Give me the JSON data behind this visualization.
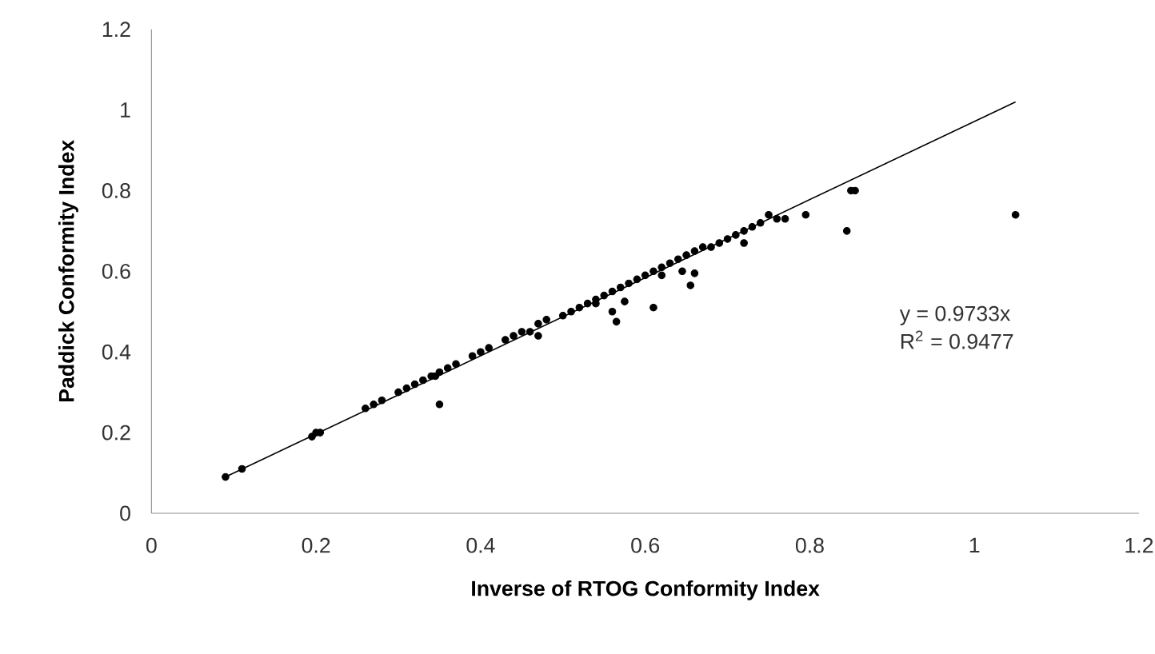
{
  "chart_data": {
    "type": "scatter",
    "xlabel": "Inverse of RTOG Conformity Index",
    "ylabel": "Paddick Conformity Index",
    "xlim": [
      0,
      1.2
    ],
    "ylim": [
      0,
      1.2
    ],
    "xticks": [
      0,
      0.2,
      0.4,
      0.6,
      0.8,
      1,
      1.2
    ],
    "yticks": [
      0,
      0.2,
      0.4,
      0.6,
      0.8,
      1,
      1.2
    ],
    "grid": false,
    "annotations": [
      "y = 0.9733x",
      "R$^{2}$ = 0.9477"
    ],
    "series": [
      {
        "marker": "circle",
        "color": "#000000",
        "x": [
          0.09,
          0.11,
          0.195,
          0.2,
          0.205,
          0.26,
          0.27,
          0.28,
          0.3,
          0.31,
          0.32,
          0.33,
          0.34,
          0.345,
          0.35,
          0.36,
          0.37,
          0.39,
          0.4,
          0.41,
          0.43,
          0.44,
          0.45,
          0.46,
          0.47,
          0.48,
          0.5,
          0.51,
          0.52,
          0.53,
          0.54,
          0.55,
          0.56,
          0.57,
          0.58,
          0.59,
          0.6,
          0.61,
          0.62,
          0.63,
          0.64,
          0.65,
          0.66,
          0.67,
          0.68,
          0.69,
          0.7,
          0.71,
          0.72,
          0.73,
          0.74,
          0.75,
          0.76,
          0.77,
          0.795,
          0.85,
          0.855,
          0.845,
          1.05,
          0.35,
          0.61,
          0.56,
          0.565,
          0.575,
          0.655,
          0.66,
          0.645,
          0.47,
          0.54,
          0.62,
          0.72
        ],
        "values": [
          0.09,
          0.11,
          0.19,
          0.2,
          0.2,
          0.26,
          0.27,
          0.28,
          0.3,
          0.31,
          0.32,
          0.33,
          0.34,
          0.34,
          0.35,
          0.36,
          0.37,
          0.39,
          0.4,
          0.41,
          0.43,
          0.44,
          0.45,
          0.45,
          0.47,
          0.48,
          0.49,
          0.5,
          0.51,
          0.52,
          0.53,
          0.54,
          0.55,
          0.56,
          0.57,
          0.58,
          0.59,
          0.6,
          0.61,
          0.62,
          0.63,
          0.64,
          0.65,
          0.66,
          0.66,
          0.67,
          0.68,
          0.69,
          0.7,
          0.71,
          0.72,
          0.74,
          0.73,
          0.73,
          0.74,
          0.8,
          0.8,
          0.7,
          0.74,
          0.27,
          0.51,
          0.5,
          0.475,
          0.525,
          0.565,
          0.595,
          0.6,
          0.44,
          0.52,
          0.59,
          0.67
        ]
      },
      {
        "type": "line",
        "marker": "none",
        "color": "#000000",
        "x": [
          0.09,
          1.05
        ],
        "values": [
          0.09,
          1.02
        ]
      }
    ]
  }
}
